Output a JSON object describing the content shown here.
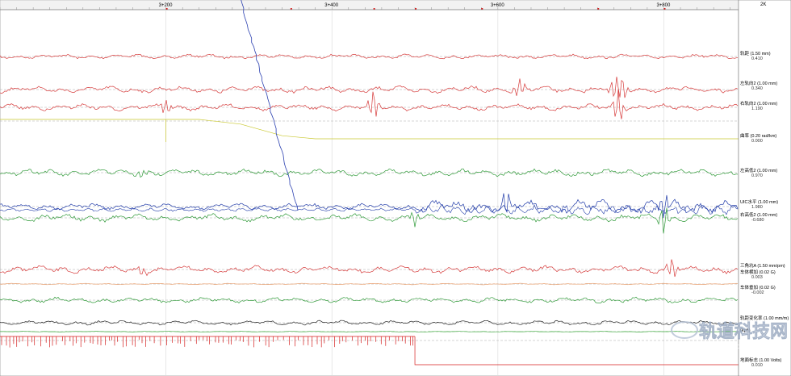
{
  "chart_data": {
    "type": "line",
    "title": "",
    "corner_label": "2K",
    "x_ticks": [
      "3+200",
      "3+400",
      "3+600",
      "3+800"
    ],
    "x_tick_km": [
      3.2,
      3.4,
      3.6,
      3.8
    ],
    "x_range": [
      3.0,
      3.89
    ],
    "series": [
      {
        "name": "轨距 (1.50 mm)",
        "value": "0.410",
        "color": "#d63a3a",
        "amp": 2.2,
        "spikes": []
      },
      {
        "name": "左轨向2 (1.00 mm)",
        "value": "0.340",
        "color": "#d63a3a",
        "amp": 3.2,
        "spikes": [
          {
            "km": 3.626,
            "a": -12
          },
          {
            "km": 3.74,
            "a": 14
          },
          {
            "km": 3.75,
            "a": -16
          }
        ]
      },
      {
        "name": "右轨向2 (1.00 mm)",
        "value": "1.190",
        "color": "#d63a3a",
        "amp": 3.0,
        "spikes": [
          {
            "km": 3.2,
            "a": -10
          },
          {
            "km": 3.45,
            "a": -20
          },
          {
            "km": 3.745,
            "a": -22
          }
        ]
      },
      {
        "name": "曲率 (0.20 rad/km)",
        "value": "0.000",
        "color": "#c9c82f",
        "amp": 0.2,
        "spikes": []
      },
      {
        "name": "左高低2 (1.00 mm)",
        "value": "0.970",
        "color": "#2f9a38",
        "amp": 3.4,
        "spikes": [
          {
            "km": 3.17,
            "a": 6
          }
        ]
      },
      {
        "name": "UIC水平 (1.00 mm)",
        "value": "1.980",
        "color": "#1f3aa8",
        "amp": 3.0,
        "spikes": [
          {
            "km": 3.61,
            "a": 14
          },
          {
            "km": 3.8,
            "a": 18
          }
        ]
      },
      {
        "name": "右高低2 (1.00 mm)",
        "value": "-0.680",
        "color": "#2f9a38",
        "amp": 3.6,
        "spikes": [
          {
            "km": 3.5,
            "a": 10
          },
          {
            "km": 3.8,
            "a": 20
          }
        ]
      },
      {
        "name": "三角坑A (1.50 mm/pm)",
        "value": "",
        "color": "#d63a3a",
        "amp": 3.4,
        "spikes": [
          {
            "km": 3.17,
            "a": 8
          },
          {
            "km": 3.81,
            "a": -14
          }
        ]
      },
      {
        "name": "车体横加 (0.02 G)",
        "value": "0.003",
        "color": "#e8a070",
        "amp": 0.6,
        "spikes": []
      },
      {
        "name": "车体垂加 (0.02 G)",
        "value": "-0.002",
        "color": "#2f9a38",
        "amp": 2.6,
        "spikes": []
      },
      {
        "name": "轨距变化率 (1.00 mm/m)",
        "value": "",
        "color": "#222222",
        "amp": 2.2,
        "spikes": []
      },
      {
        "name": "(kph)",
        "value": "",
        "color": "#3aa83a",
        "amp": 0.3,
        "spikes": []
      },
      {
        "name": "地面标志 (1.00 Volts)",
        "value": "0.010",
        "color": "#d62020",
        "amp": 0,
        "spikes": []
      }
    ],
    "curvature_profile": [
      [
        3.0,
        0.0
      ],
      [
        3.24,
        0.0
      ],
      [
        3.29,
        0.12
      ],
      [
        3.34,
        0.42
      ],
      [
        3.38,
        0.5
      ],
      [
        3.89,
        0.5
      ]
    ],
    "cursor_line": [
      [
        3.29,
        -0.05
      ],
      [
        3.36,
        1.0
      ]
    ],
    "ground_marker_off_km": 3.5
  },
  "watermark": {
    "cn": "轨道科技网",
    "en": "GuiDao123.Com"
  }
}
